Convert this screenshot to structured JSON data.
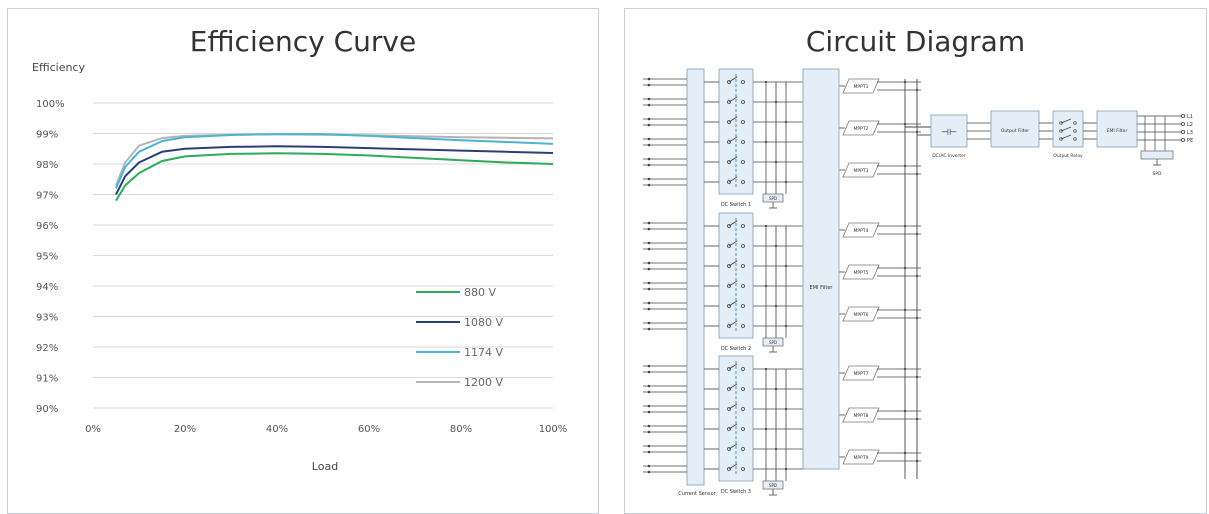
{
  "efficiency_panel": {
    "title": "Efficiency Curve"
  },
  "circuit_panel": {
    "title": "Circuit Diagram",
    "labels": {
      "dc_switch_1": "DC Switch 1",
      "dc_switch_2": "DC Switch 2",
      "dc_switch_3": "DC Switch 3",
      "current_sensor": "Current Sensor",
      "emi_filter_main": "EMI Filter",
      "dcac_inverter": "DC/AC Inverter",
      "output_filter": "Output Filter",
      "output_relay": "Output Relay",
      "emi_filter_out": "EMI Filter",
      "spd_out": "SPD",
      "spd_box": "SPD",
      "outputs": [
        "L1",
        "L2",
        "L3",
        "PE"
      ],
      "mppt": [
        "MPPT1",
        "MPPT2",
        "MPPT3",
        "MPPT4",
        "MPPT5",
        "MPPT6",
        "MPPT7",
        "MPPT8",
        "MPPT9"
      ]
    }
  },
  "chart_data": {
    "type": "line",
    "title": "Efficiency Curve",
    "ylabel": "Efficiency",
    "xlabel": "Load",
    "x_ticks": [
      "0%",
      "20%",
      "40%",
      "60%",
      "80%",
      "100%"
    ],
    "y_ticks": [
      "100%",
      "99%",
      "98%",
      "97%",
      "96%",
      "95%",
      "94%",
      "93%",
      "92%",
      "91%",
      "90%"
    ],
    "xlim": [
      0,
      100
    ],
    "ylim": [
      90,
      100
    ],
    "grid": true,
    "legend": "bottom-right",
    "x": [
      5,
      7,
      10,
      15,
      20,
      30,
      40,
      50,
      60,
      70,
      80,
      90,
      100
    ],
    "series": [
      {
        "name": "880 V",
        "color": "#2eaa5c",
        "values": [
          96.8,
          97.3,
          97.7,
          98.1,
          98.25,
          98.33,
          98.35,
          98.33,
          98.28,
          98.2,
          98.12,
          98.05,
          98.0
        ]
      },
      {
        "name": "1080 V",
        "color": "#2c3e7a",
        "values": [
          97.0,
          97.6,
          98.05,
          98.4,
          98.5,
          98.56,
          98.58,
          98.56,
          98.52,
          98.48,
          98.44,
          98.4,
          98.36
        ]
      },
      {
        "name": "1174 V",
        "color": "#4cb3d4",
        "values": [
          97.2,
          97.9,
          98.4,
          98.75,
          98.88,
          98.95,
          98.98,
          98.98,
          98.92,
          98.85,
          98.78,
          98.72,
          98.66
        ]
      },
      {
        "name": "1200 V",
        "color": "#b4b4b4",
        "values": [
          97.3,
          98.05,
          98.6,
          98.85,
          98.92,
          98.96,
          98.97,
          98.96,
          98.94,
          98.91,
          98.88,
          98.86,
          98.84
        ]
      }
    ]
  }
}
